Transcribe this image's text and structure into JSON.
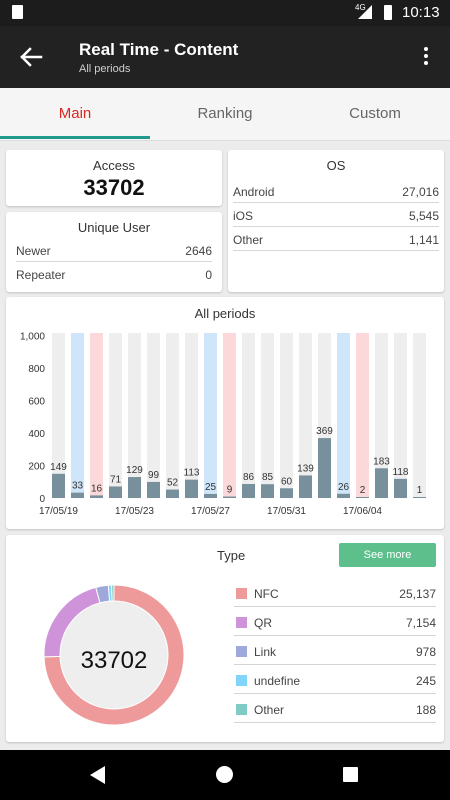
{
  "status_bar": {
    "time": "10:13",
    "network": "4G"
  },
  "app_bar": {
    "title": "Real Time - Content",
    "subtitle": "All periods"
  },
  "tabs": [
    {
      "label": "Main",
      "active": true
    },
    {
      "label": "Ranking",
      "active": false
    },
    {
      "label": "Custom",
      "active": false
    }
  ],
  "access": {
    "label": "Access",
    "value": "33702"
  },
  "unique_user": {
    "title": "Unique User",
    "rows": [
      {
        "label": "Newer",
        "value": "2646"
      },
      {
        "label": "Repeater",
        "value": "0"
      }
    ]
  },
  "os": {
    "title": "OS",
    "rows": [
      {
        "label": "Android",
        "value": "27,016"
      },
      {
        "label": "iOS",
        "value": "5,545"
      },
      {
        "label": "Other",
        "value": "1,141"
      }
    ]
  },
  "chart_data": {
    "type": "bar",
    "title": "All periods",
    "ylim": [
      0,
      1000
    ],
    "y_ticks": [
      "0",
      "200",
      "400",
      "600",
      "800",
      "1,000"
    ],
    "x_tick_labels": [
      "17/05/19",
      "17/05/23",
      "17/05/27",
      "17/05/31",
      "17/06/04"
    ],
    "values": [
      149,
      33,
      16,
      71,
      129,
      99,
      52,
      113,
      25,
      9,
      86,
      85,
      60,
      139,
      369,
      26,
      2,
      183,
      118,
      1
    ],
    "day_type": [
      "w",
      "sat",
      "sun",
      "w",
      "w",
      "w",
      "w",
      "w",
      "sat",
      "sun",
      "w",
      "w",
      "w",
      "w",
      "w",
      "sat",
      "sun",
      "w",
      "w",
      "w"
    ],
    "colors": {
      "bar": "#78909c",
      "weekday_bg": "#eeeeee",
      "saturday_bg": "#cfe6fa",
      "sunday_bg": "#fbd9da"
    }
  },
  "type_section": {
    "title": "Type",
    "see_more": "See more",
    "total": "33702",
    "items": [
      {
        "label": "NFC",
        "value": "25,137",
        "count": 25137,
        "color": "#ef9a9a"
      },
      {
        "label": "QR",
        "value": "7,154",
        "count": 7154,
        "color": "#ce93d8"
      },
      {
        "label": "Link",
        "value": "978",
        "count": 978,
        "color": "#9fa8da"
      },
      {
        "label": "undefine",
        "value": "245",
        "count": 245,
        "color": "#81d4fa"
      },
      {
        "label": "Other",
        "value": "188",
        "count": 188,
        "color": "#80cbc4"
      }
    ]
  }
}
